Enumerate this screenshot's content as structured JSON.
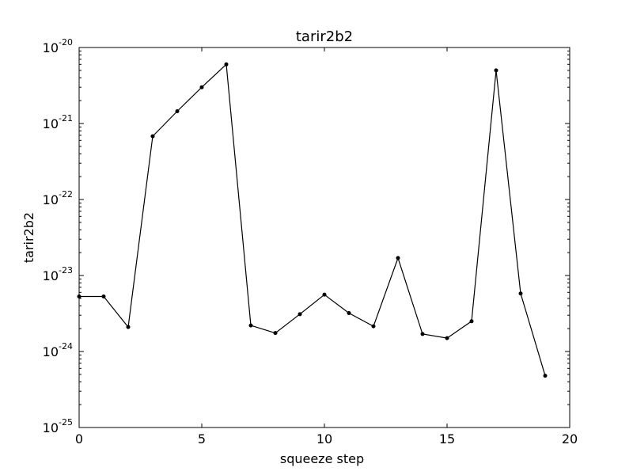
{
  "chart_data": {
    "type": "line",
    "title": "tarir2b2",
    "xlabel": "squeeze step",
    "ylabel": "tarir2b2",
    "xlim": [
      0,
      20
    ],
    "ylim": [
      1e-25,
      1e-20
    ],
    "yscale": "log",
    "grid": false,
    "x_ticks": [
      "0",
      "5",
      "10",
      "15",
      "20"
    ],
    "y_ticks": [
      {
        "base": "10",
        "exp": "-25"
      },
      {
        "base": "10",
        "exp": "-24"
      },
      {
        "base": "10",
        "exp": "-23"
      },
      {
        "base": "10",
        "exp": "-22"
      },
      {
        "base": "10",
        "exp": "-21"
      },
      {
        "base": "10",
        "exp": "-20"
      }
    ],
    "series": [
      {
        "x": [
          0,
          1,
          2,
          3,
          4,
          5,
          6,
          7,
          8,
          9,
          10,
          11,
          12,
          13,
          14,
          15,
          16,
          17,
          18,
          19
        ],
        "values": [
          5.3e-24,
          5.3e-24,
          2.1e-24,
          6.8e-22,
          1.45e-21,
          3e-21,
          6e-21,
          2.2e-24,
          1.75e-24,
          3.1e-24,
          5.6e-24,
          3.2e-24,
          2.15e-24,
          1.7e-23,
          1.7e-24,
          1.5e-24,
          2.5e-24,
          5e-21,
          5.8e-24,
          4.8e-25
        ]
      }
    ]
  }
}
